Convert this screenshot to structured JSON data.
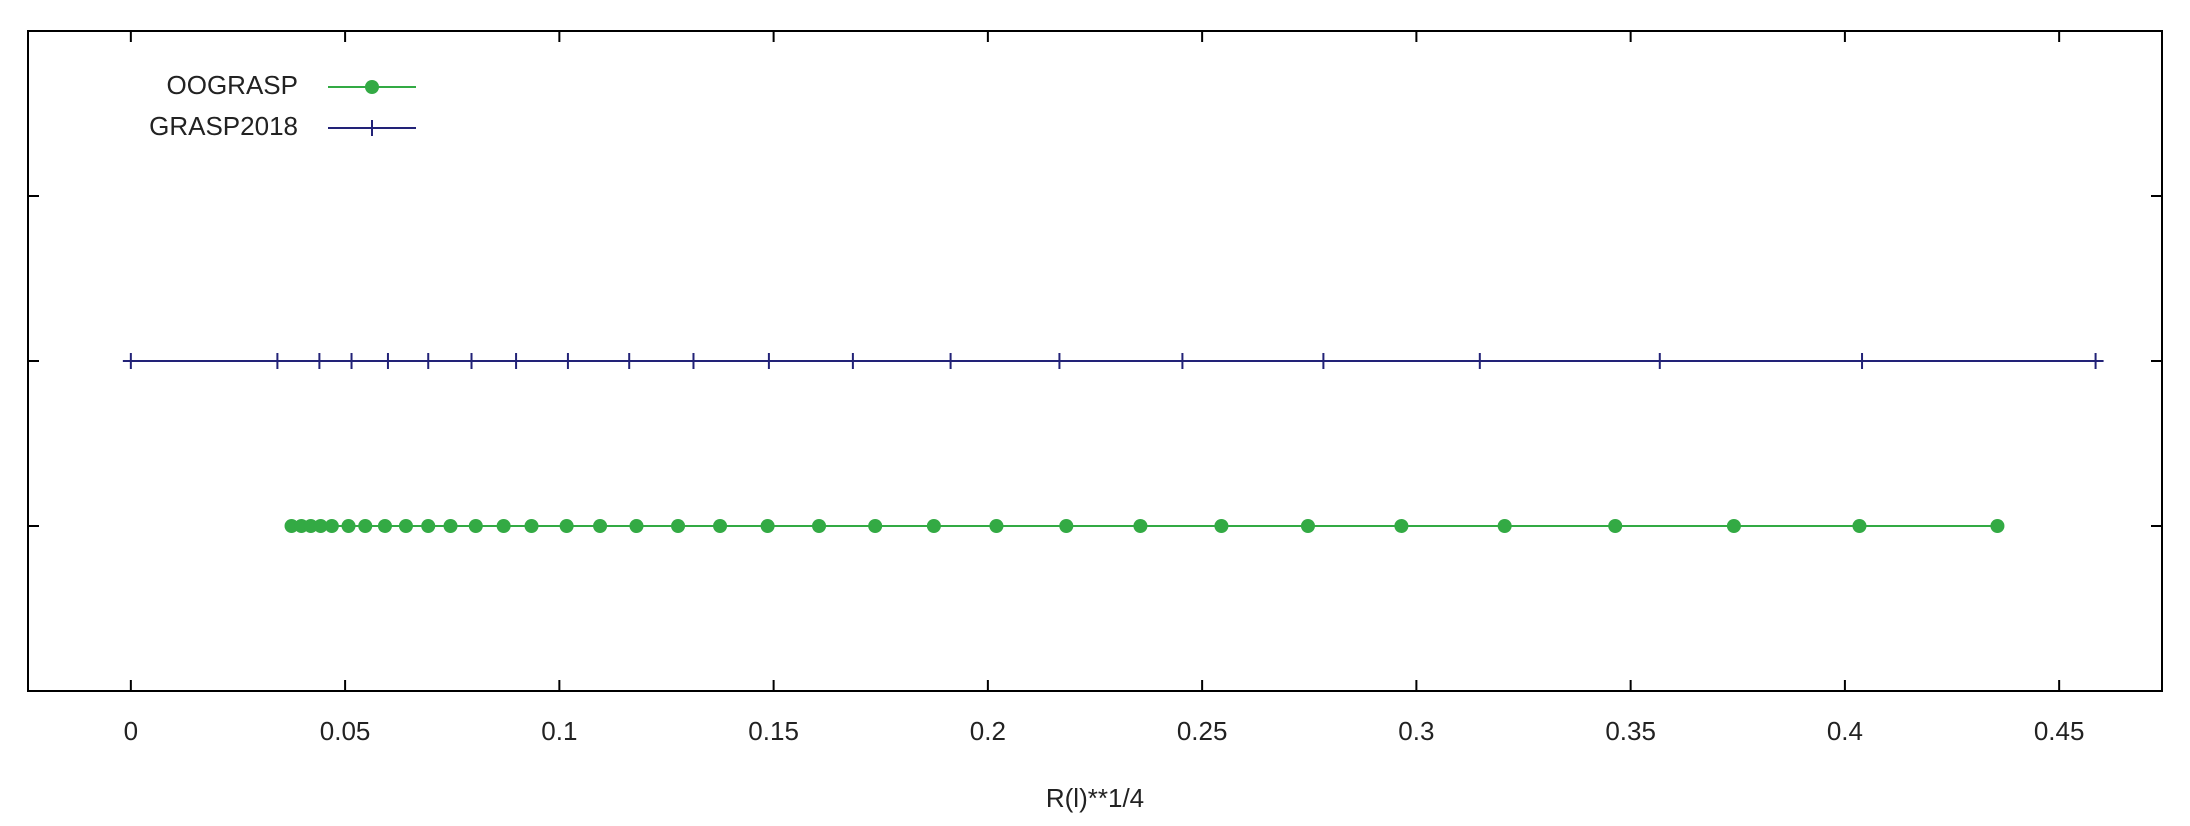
{
  "chart_data": {
    "type": "scatter",
    "x_label": "R(l)**1/4",
    "xlim": [
      -0.024,
      0.474
    ],
    "xticks": [
      0,
      0.05,
      0.1,
      0.15,
      0.2,
      0.25,
      0.3,
      0.35,
      0.4,
      0.45
    ],
    "ylim": [
      0,
      4
    ],
    "yticks": [
      1,
      2,
      3
    ],
    "legend": "top-left",
    "series": [
      {
        "name": "OOGRASP",
        "color": "#33aa44",
        "marker": "circle",
        "x": [
          0.0375,
          0.0398,
          0.042,
          0.0443,
          0.0469,
          0.0508,
          0.0547,
          0.0593,
          0.0642,
          0.0694,
          0.0746,
          0.0805,
          0.087,
          0.0935,
          0.1017,
          0.1095,
          0.118,
          0.1277,
          0.1375,
          0.1486,
          0.1606,
          0.1737,
          0.1874,
          0.202,
          0.2183,
          0.2356,
          0.2545,
          0.2747,
          0.2965,
          0.3206,
          0.3464,
          0.3741,
          0.4034,
          0.4356
        ],
        "values": [
          1,
          1,
          1,
          1,
          1,
          1,
          1,
          1,
          1,
          1,
          1,
          1,
          1,
          1,
          1,
          1,
          1,
          1,
          1,
          1,
          1,
          1,
          1,
          1,
          1,
          1,
          1,
          1,
          1,
          1,
          1,
          1,
          1,
          1
        ]
      },
      {
        "name": "GRASP2018",
        "color": "#222277",
        "marker": "plus",
        "x": [
          0,
          0.0342,
          0.044,
          0.0515,
          0.06,
          0.0694,
          0.0795,
          0.0899,
          0.102,
          0.1163,
          0.1313,
          0.1489,
          0.1685,
          0.1913,
          0.2167,
          0.2454,
          0.2783,
          0.3148,
          0.3568,
          0.404,
          0.4585
        ],
        "values": [
          2,
          2,
          2,
          2,
          2,
          2,
          2,
          2,
          2,
          2,
          2,
          2,
          2,
          2,
          2,
          2,
          2,
          2,
          2,
          2,
          2
        ]
      }
    ]
  }
}
